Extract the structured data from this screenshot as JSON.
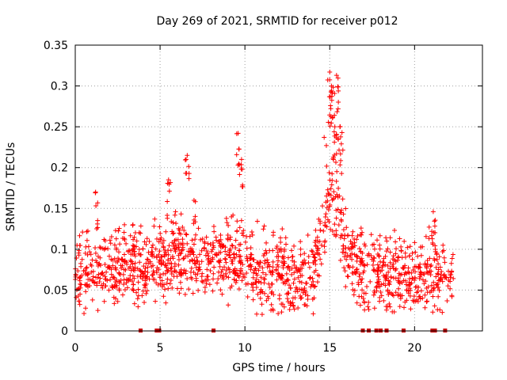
{
  "chart_data": {
    "type": "scatter",
    "title": "Day 269 of 2021, SRMTID for receiver p012",
    "xlabel": "GPS time / hours",
    "ylabel": "SRMTID / TECUs",
    "xlim": [
      0,
      24
    ],
    "ylim": [
      0,
      0.35
    ],
    "xticks": [
      0,
      5,
      10,
      15,
      20
    ],
    "xtick_labels": [
      "0",
      "5",
      "10",
      "15",
      "20"
    ],
    "yticks": [
      0,
      0.05,
      0.1,
      0.15,
      0.2,
      0.25,
      0.3,
      0.35
    ],
    "ytick_labels": [
      "0",
      "0.05",
      "0.1",
      "0.15",
      "0.2",
      "0.25",
      "0.3",
      "0.35"
    ],
    "grid": true,
    "marker": "plus",
    "series_color": "#ff0000",
    "zero_marker_color": "#cc0000",
    "profile": [
      [
        0.0,
        0.07
      ],
      [
        1.0,
        0.075
      ],
      [
        2.0,
        0.07
      ],
      [
        3.0,
        0.075
      ],
      [
        4.0,
        0.08
      ],
      [
        5.0,
        0.085
      ],
      [
        6.0,
        0.095
      ],
      [
        7.0,
        0.09
      ],
      [
        8.0,
        0.08
      ],
      [
        9.0,
        0.095
      ],
      [
        10.0,
        0.085
      ],
      [
        11.0,
        0.07
      ],
      [
        12.0,
        0.07
      ],
      [
        13.0,
        0.065
      ],
      [
        14.0,
        0.07
      ],
      [
        14.5,
        0.11
      ],
      [
        15.0,
        0.16
      ],
      [
        15.5,
        0.14
      ],
      [
        16.0,
        0.09
      ],
      [
        17.0,
        0.075
      ],
      [
        18.0,
        0.07
      ],
      [
        19.0,
        0.07
      ],
      [
        20.0,
        0.065
      ],
      [
        21.0,
        0.07
      ],
      [
        22.0,
        0.07
      ],
      [
        22.3,
        0.07
      ]
    ],
    "peaks": [
      [
        1.2,
        0.17
      ],
      [
        2.9,
        0.13
      ],
      [
        3.4,
        0.13
      ],
      [
        5.5,
        0.185
      ],
      [
        6.6,
        0.215
      ],
      [
        7.0,
        0.16
      ],
      [
        9.6,
        0.242
      ],
      [
        9.8,
        0.21
      ],
      [
        12.2,
        0.125
      ],
      [
        15.0,
        0.317
      ],
      [
        15.1,
        0.3
      ],
      [
        15.4,
        0.313
      ],
      [
        15.3,
        0.25
      ],
      [
        15.6,
        0.25
      ],
      [
        21.1,
        0.146
      ]
    ],
    "zero_markers": [
      3.85,
      4.8,
      4.95,
      8.15,
      16.95,
      17.3,
      17.75,
      18.0,
      18.35,
      19.35,
      21.05,
      21.2,
      21.8
    ]
  }
}
